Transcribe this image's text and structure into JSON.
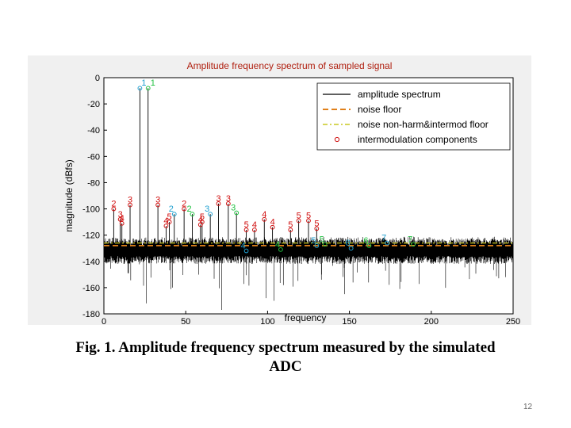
{
  "slide": {
    "caption_line1": "Fig. 1. Amplitude frequency spectrum measured by the simulated",
    "caption_line2": "ADC",
    "page_number": "12"
  },
  "chart_data": {
    "type": "line",
    "title": "Amplitude frequency spectrum of sampled signal",
    "xlabel": "frequency",
    "ylabel": "magnitude (dBfs)",
    "xlim": [
      0,
      250
    ],
    "ylim": [
      -180,
      0
    ],
    "xticks": [
      0,
      50,
      100,
      150,
      200,
      250
    ],
    "yticks": [
      0,
      -20,
      -40,
      -60,
      -80,
      -100,
      -120,
      -140,
      -160,
      -180
    ],
    "grid": false,
    "legend": {
      "placement": "top-right",
      "entries": [
        {
          "label": "amplitude spectrum",
          "color": "#000000",
          "style": "solid"
        },
        {
          "label": "noise floor",
          "color": "#e0801a",
          "style": "dashed"
        },
        {
          "label": "noise non-harm&intermod floor",
          "color": "#c8c820",
          "style": "dashdot"
        },
        {
          "label": "intermodulation components",
          "color": "#d01010",
          "style": "circle"
        }
      ]
    },
    "noise_floor": -128,
    "noise_non_harm_floor": -126,
    "noise_band": {
      "top": -124,
      "bottom": -136,
      "spike_min": -177
    },
    "fundamentals": [
      {
        "x": 22,
        "y": -8,
        "label": "1",
        "color": "#20a0d0"
      },
      {
        "x": 27,
        "y": -8,
        "label": "1",
        "color": "#20c040"
      }
    ],
    "harmonics": [
      {
        "x": 43,
        "y": -104,
        "label": "2",
        "color": "#20a0d0"
      },
      {
        "x": 54,
        "y": -104,
        "label": "2",
        "color": "#20c040"
      },
      {
        "x": 65,
        "y": -104,
        "label": "3",
        "color": "#20a0d0"
      },
      {
        "x": 81,
        "y": -103,
        "label": "3",
        "color": "#20c040"
      },
      {
        "x": 87,
        "y": -132,
        "label": "4",
        "color": "#20a0d0"
      },
      {
        "x": 108,
        "y": -131,
        "label": "4",
        "color": "#20c040"
      },
      {
        "x": 130,
        "y": -128,
        "label": "5",
        "color": "#20a0d0"
      },
      {
        "x": 135,
        "y": -127,
        "label": "5",
        "color": "#20c040"
      },
      {
        "x": 151,
        "y": -130,
        "label": "6",
        "color": "#20a0d0"
      },
      {
        "x": 162,
        "y": -128,
        "label": "6",
        "color": "#20c040"
      },
      {
        "x": 173,
        "y": -126,
        "label": "7",
        "color": "#20a0d0"
      },
      {
        "x": 189,
        "y": -127,
        "label": "7",
        "color": "#20c040"
      }
    ],
    "intermodulation": [
      {
        "x": 6,
        "y": -100,
        "label": "2"
      },
      {
        "x": 10,
        "y": -108,
        "label": "3"
      },
      {
        "x": 11,
        "y": -111,
        "label": "4"
      },
      {
        "x": 16,
        "y": -97,
        "label": "3"
      },
      {
        "x": 33,
        "y": -97,
        "label": "3"
      },
      {
        "x": 38,
        "y": -113,
        "label": "4"
      },
      {
        "x": 40,
        "y": -110,
        "label": "5"
      },
      {
        "x": 49,
        "y": -100,
        "label": "2"
      },
      {
        "x": 59,
        "y": -112,
        "label": "4"
      },
      {
        "x": 60,
        "y": -110,
        "label": "5"
      },
      {
        "x": 70,
        "y": -96,
        "label": "3"
      },
      {
        "x": 76,
        "y": -96,
        "label": "3"
      },
      {
        "x": 87,
        "y": -116,
        "label": "5"
      },
      {
        "x": 92,
        "y": -116,
        "label": "4"
      },
      {
        "x": 98,
        "y": -108,
        "label": "4"
      },
      {
        "x": 103,
        "y": -114,
        "label": "4"
      },
      {
        "x": 114,
        "y": -116,
        "label": "5"
      },
      {
        "x": 119,
        "y": -109,
        "label": "5"
      },
      {
        "x": 125,
        "y": -109,
        "label": "5"
      },
      {
        "x": 130,
        "y": -115,
        "label": "5"
      }
    ]
  }
}
